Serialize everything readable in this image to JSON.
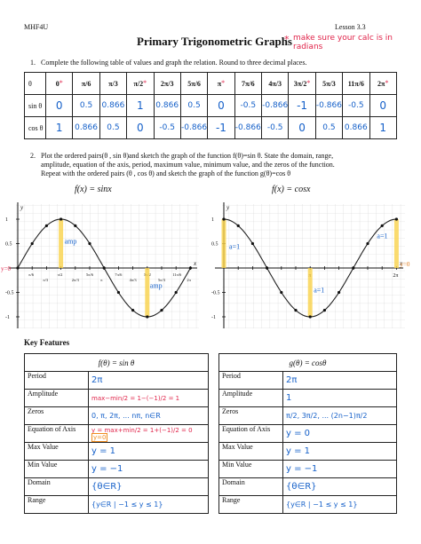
{
  "header": {
    "course": "MHF4U",
    "lesson": "Lesson 3.3",
    "title": "Primary Trigonometric Graphs",
    "note_star": "*",
    "note": "make sure your calc is in radians"
  },
  "q1": {
    "number": "1.",
    "text": "Complete the following table of values and graph the relation. Round to three decimal places.",
    "row_labels": [
      "θ",
      "sin θ",
      "cos θ"
    ],
    "theta": [
      "0",
      "π/6",
      "π/3",
      "π/2",
      "2π/3",
      "5π/6",
      "π",
      "7π/6",
      "4π/3",
      "3π/2",
      "5π/3",
      "11π/6",
      "2π"
    ],
    "starred": [
      true,
      false,
      false,
      true,
      false,
      false,
      true,
      false,
      false,
      true,
      false,
      false,
      true
    ],
    "sin": [
      "0",
      "0.5",
      "0.866",
      "1",
      "0.866",
      "0.5",
      "0",
      "-0.5",
      "-0.866",
      "-1",
      "-0.866",
      "-0.5",
      "0"
    ],
    "cos": [
      "1",
      "0.866",
      "0.5",
      "0",
      "-0.5",
      "-0.866",
      "-1",
      "-0.866",
      "-0.5",
      "0",
      "0.5",
      "0.866",
      "1"
    ]
  },
  "q2": {
    "number": "2.",
    "line1": "Plot the ordered pairs(θ , sin θ)and sketch the graph of the function f(θ)=sin θ. State the domain, range,",
    "line2": "amplitude, equation of the axis, period, maximum value, minimum value, and the zeros of the function.",
    "line3": "Repeat with the ordered pairs (θ , cos θ) and sketch the graph of the function g(θ)=cos θ"
  },
  "graphs": {
    "left_title": "f(x) = sinx",
    "right_title": "f(x) = cosx",
    "axis_x": "x",
    "axis_y": "y",
    "tick_pos": "1",
    "tick_half": "0.5",
    "tick_neg_half": "-0.5",
    "tick_neg": "-1",
    "left_xticks": [
      "π/6",
      "π/3",
      "π/2",
      "2π/3",
      "5π/6",
      "π",
      "7π/6",
      "4π/3",
      "3π/2",
      "5π/3",
      "11π/6",
      "2π"
    ],
    "right_xticks": [
      "π",
      "2π"
    ],
    "amp_label": "amp",
    "y0_label": "y=0",
    "a_label": "a=1",
    "sin_points": [
      0,
      0.5,
      0.866,
      1,
      0.866,
      0.5,
      0,
      -0.5,
      -0.866,
      -1,
      -0.866,
      -0.5,
      0
    ],
    "cos_points": [
      1,
      0.866,
      0.5,
      0,
      -0.5,
      -0.866,
      -1,
      -0.866,
      -0.5,
      0,
      0.5,
      0.866,
      1
    ]
  },
  "key": {
    "heading": "Key Features",
    "rows": [
      "Period",
      "Amplitude",
      "Zeros",
      "Equation of Axis",
      "Max Value",
      "Min Value",
      "Domain",
      "Range"
    ],
    "sin_title": "f(θ) = sin θ",
    "cos_title": "g(θ) = cosθ",
    "sin_answers": [
      "2π",
      "max−min/2 = 1−(−1)/2 = 1",
      "0, π, 2π, ... nπ, n∈R",
      "y = max+min/2 = 1+(−1)/2 = 0",
      "y = 1",
      "y = −1",
      "{θ∈R}",
      "{y∈R | −1 ≤ y ≤ 1}"
    ],
    "sin_axis_box": "y=0",
    "cos_answers": [
      "2π",
      "1",
      "π/2, 3π/2, ... (2n−1)π/2",
      "y = 0",
      "y = 1",
      "y = −1",
      "{θ∈R}",
      "{y∈R | −1 ≤ y ≤ 1}"
    ]
  }
}
